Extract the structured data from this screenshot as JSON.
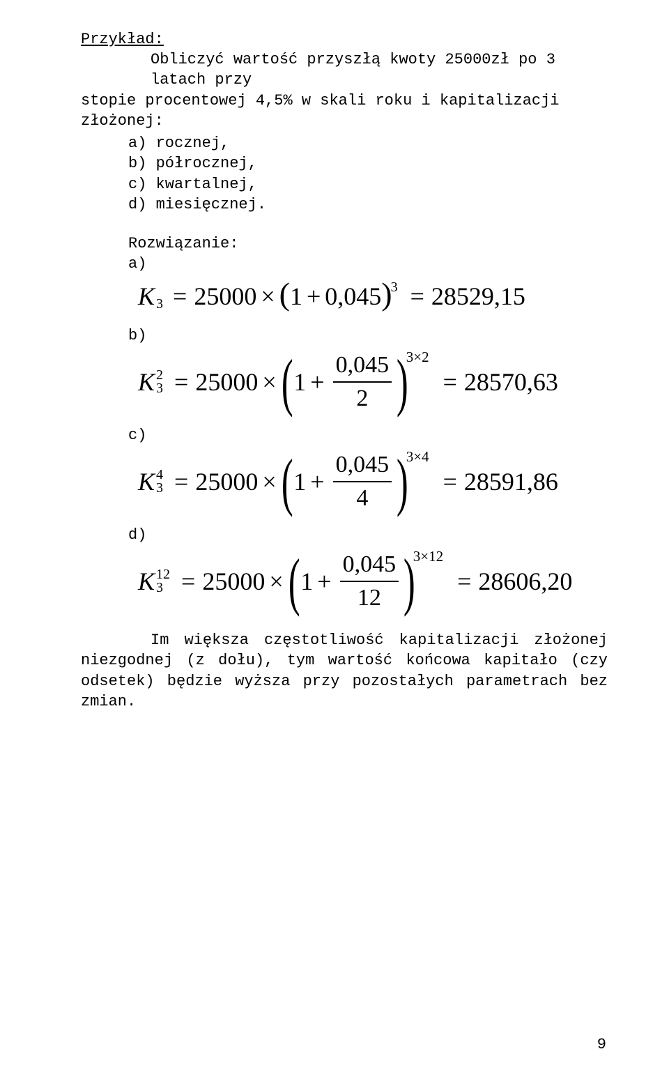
{
  "heading": "Przykład:",
  "intro_line1": "Obliczyć wartość przyszłą kwoty 25000zł po 3 latach przy",
  "intro_line2": "stopie procentowej 4,5% w skali roku i kapitalizacji złożonej:",
  "list": {
    "a": "a) rocznej,",
    "b": "b) półrocznej,",
    "c": "c) kwartalnej,",
    "d": "d) miesięcznej."
  },
  "solution_label": "Rozwiązanie:",
  "labels": {
    "a": "a)",
    "b": "b)",
    "c": "c)",
    "d": "d)"
  },
  "sym": {
    "K": "K",
    "eq": "=",
    "times": "×",
    "plus": "+",
    "one": "1",
    "lparen": "(",
    "rparen": ")"
  },
  "formula_a": {
    "sub": "3",
    "base": "25000",
    "r": "0,045",
    "exp": "3",
    "result": "28529,15"
  },
  "formula_b": {
    "sup": "2",
    "sub": "3",
    "base": "25000",
    "r": "0,045",
    "den": "2",
    "exp": "3×2",
    "result": "28570,63"
  },
  "formula_c": {
    "sup": "4",
    "sub": "3",
    "base": "25000",
    "r": "0,045",
    "den": "4",
    "exp": "3×4",
    "result": "28591,86"
  },
  "formula_d": {
    "sup": "12",
    "sub": "3",
    "base": "25000",
    "r": "0,045",
    "den": "12",
    "exp": "3×12",
    "result": "28606,20"
  },
  "footer_text": "Im większa częstotliwość kapitalizacji złożonej niezgodnej (z dołu), tym wartość końcowa kapitało (czy odsetek) będzie wyższa przy pozostałych parametrach bez zmian.",
  "page_number": "9",
  "colors": {
    "text": "#000000",
    "background": "#ffffff"
  }
}
